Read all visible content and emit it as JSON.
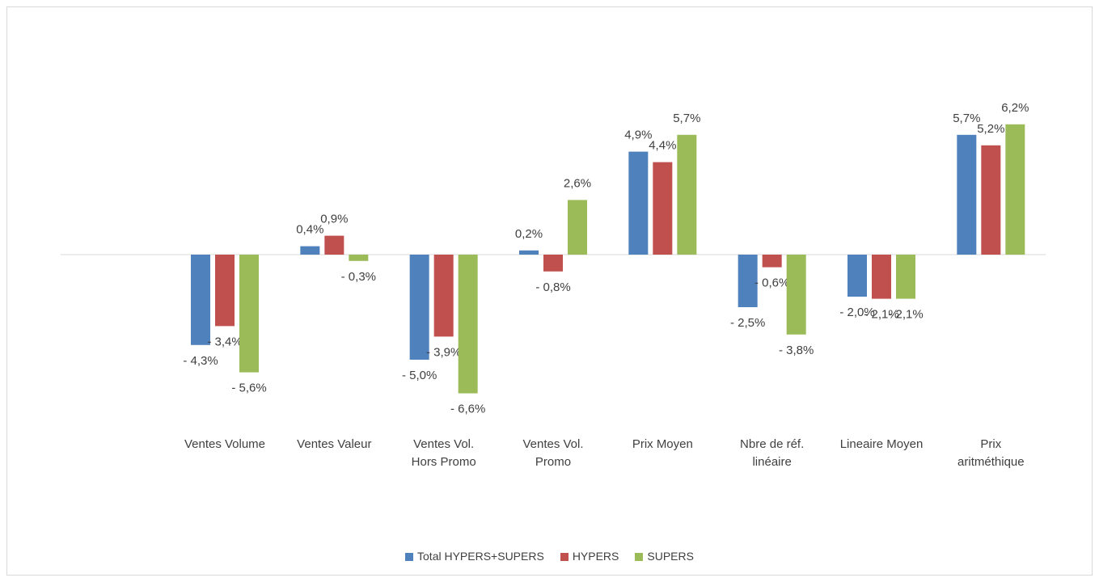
{
  "chart_data": {
    "type": "bar",
    "categories": [
      null,
      "Ventes Volume",
      "Ventes Valeur",
      "Ventes Vol.\nHors Promo",
      "Ventes Vol.\nPromo",
      "Prix Moyen",
      "Nbre de réf.\nlinéaire",
      "Lineaire Moyen",
      "Prix\naritméthique"
    ],
    "series": [
      {
        "name": "Total HYPERS+SUPERS",
        "color": "#4f81bd",
        "values": [
          null,
          -4.3,
          0.4,
          -5.0,
          0.2,
          4.9,
          -2.5,
          -2.0,
          5.7
        ],
        "value_labels": [
          null,
          "- 4,3%",
          "0,4%",
          "- 5,0%",
          "0,2%",
          "4,9%",
          "- 2,5%",
          "- 2,0%",
          "5,7%"
        ]
      },
      {
        "name": "HYPERS",
        "color": "#c0504d",
        "values": [
          null,
          -3.4,
          0.9,
          -3.9,
          -0.8,
          4.4,
          -0.6,
          -2.1,
          5.2
        ],
        "value_labels": [
          null,
          "- 3,4%",
          "0,9%",
          "- 3,9%",
          "- 0,8%",
          "4,4%",
          "- 0,6%",
          "- 2,1%",
          "5,2%"
        ]
      },
      {
        "name": "SUPERS",
        "color": "#9bbb59",
        "values": [
          null,
          -5.6,
          -0.3,
          -6.6,
          2.6,
          5.7,
          -3.8,
          -2.1,
          6.2
        ],
        "value_labels": [
          null,
          "- 5,6%",
          "- 0,3%",
          "- 6,6%",
          "2,6%",
          "5,7%",
          "- 3,8%",
          "- 2,1%",
          "6,2%"
        ]
      }
    ],
    "ylim": [
      -8,
      9
    ],
    "legend": "bottom"
  }
}
